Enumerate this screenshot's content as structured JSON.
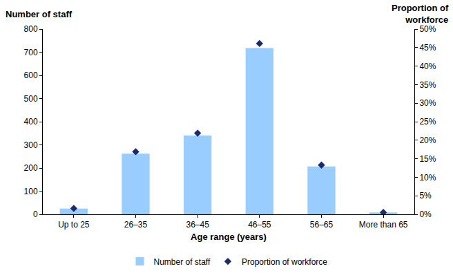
{
  "chart_data": {
    "type": "bar",
    "x_label": "Age range (years)",
    "y_label": "Number of staff",
    "y2_label": "Proportion of\nworkforce",
    "categories": [
      "Up to 25",
      "26–35",
      "36–45",
      "46–55",
      "56–65",
      "More than 65"
    ],
    "series": [
      {
        "name": "Number of staff",
        "type": "bar",
        "color": "#99ccff",
        "values": [
          25,
          262,
          340,
          718,
          207,
          8
        ]
      },
      {
        "name": "Proportion of workforce",
        "type": "scatter",
        "axis": "y2",
        "color": "#1c2a6b",
        "marker": "diamond",
        "values": [
          1.6,
          16.9,
          21.9,
          46.1,
          13.3,
          0.5
        ]
      }
    ],
    "ylim": [
      0,
      800
    ],
    "yticks": [
      0,
      100,
      200,
      300,
      400,
      500,
      600,
      700,
      800
    ],
    "y2lim": [
      0,
      50
    ],
    "y2ticks": [
      {
        "value": 0,
        "label": "0%"
      },
      {
        "value": 5,
        "label": "5%"
      },
      {
        "value": 10,
        "label": "10%"
      },
      {
        "value": 15,
        "label": "15%"
      },
      {
        "value": 20,
        "label": "20%"
      },
      {
        "value": 25,
        "label": "25%"
      },
      {
        "value": 30,
        "label": "30%"
      },
      {
        "value": 35,
        "label": "35%"
      },
      {
        "value": 40,
        "label": "40%"
      },
      {
        "value": 45,
        "label": "45%"
      },
      {
        "value": 50,
        "label": "50%"
      }
    ],
    "grid": false,
    "legend": "bottom"
  }
}
